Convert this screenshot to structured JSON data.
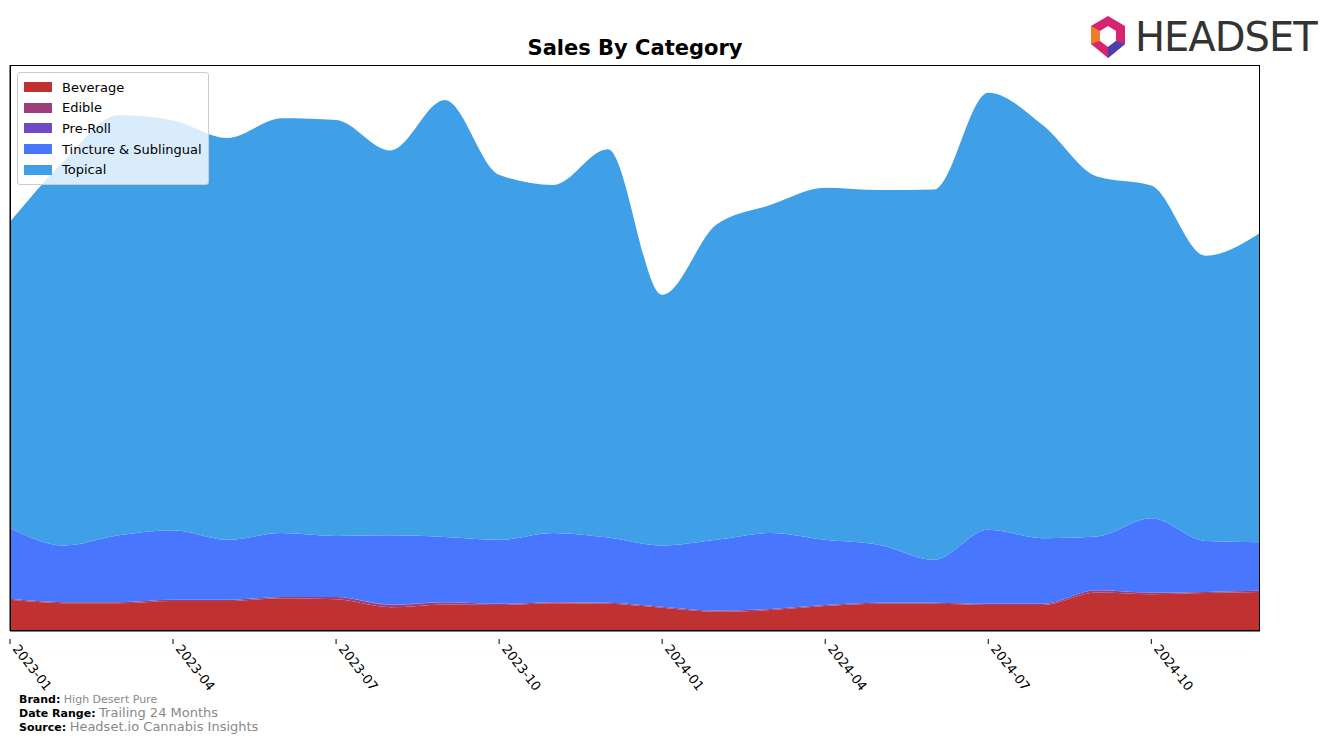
{
  "chart_data": {
    "type": "area",
    "title": "Sales By Category",
    "stacked": true,
    "legend": "upper left",
    "tick_labels": "x",
    "ylim": [
      0,
      100
    ],
    "categories": [
      "2023-01",
      null,
      null,
      "2023-04",
      null,
      null,
      "2023-07",
      null,
      null,
      "2023-10",
      null,
      null,
      "2024-01",
      null,
      null,
      "2024-04",
      null,
      null,
      "2024-07",
      null,
      null,
      "2024-10",
      null,
      null
    ],
    "series": [
      {
        "name": "Beverage",
        "color": "#c03131",
        "values": [
          5.5,
          4.9,
          4.9,
          5.3,
          5.3,
          5.8,
          5.6,
          4.2,
          4.7,
          4.6,
          4.9,
          4.8,
          4.1,
          3.4,
          3.7,
          4.4,
          4.8,
          4.8,
          4.6,
          4.6,
          6.8,
          6.5,
          6.7,
          6.9
        ]
      },
      {
        "name": "Edible",
        "color": "#9a3f7a",
        "values": [
          0.2,
          0.2,
          0.2,
          0.2,
          0.2,
          0.2,
          0.4,
          0.4,
          0.4,
          0.2,
          0.2,
          0.2,
          0.2,
          0.2,
          0.2,
          0.2,
          0.2,
          0.2,
          0.2,
          0.2,
          0.4,
          0.3,
          0.2,
          0.2
        ]
      },
      {
        "name": "Pre-Roll",
        "color": "#6f4ac6",
        "values": [
          0,
          0,
          0,
          0,
          0,
          0,
          0,
          0.1,
          0,
          0,
          0,
          0,
          0,
          0,
          0,
          0,
          0,
          0,
          0,
          0,
          0,
          0,
          0,
          0
        ]
      },
      {
        "name": "Tincture & Sublingual",
        "color": "#4876ff",
        "values": [
          12.5,
          10.0,
          11.8,
          12.3,
          10.6,
          11.3,
          10.8,
          12.2,
          11.5,
          11.3,
          12.2,
          11.5,
          10.8,
          12.5,
          13.4,
          11.5,
          10.2,
          7.6,
          13.1,
          11.6,
          9.5,
          13.1,
          9.0,
          8.6
        ]
      },
      {
        "name": "Topical",
        "color": "#3fa0e8",
        "values": [
          54.1,
          68.0,
          74.2,
          72.4,
          71.0,
          73.3,
          73.5,
          68.0,
          77.2,
          64.5,
          61.5,
          68.6,
          44.3,
          55.7,
          58.0,
          62.2,
          62.7,
          65.4,
          77.2,
          73.0,
          63.6,
          58.8,
          50.4,
          54.6
        ]
      }
    ],
    "footer": [
      {
        "label": "Brand:",
        "value": "High Desert Pure"
      },
      {
        "label": "Date Range:",
        "value": "Trailing 24 Months"
      },
      {
        "label": "Source:",
        "value": "Headset.io Cannabis Insights"
      }
    ],
    "logo": "HEADSET"
  }
}
